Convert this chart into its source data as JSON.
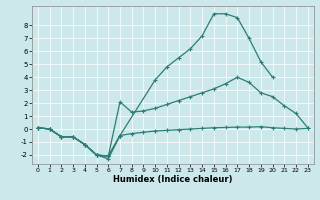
{
  "xlabel": "Humidex (Indice chaleur)",
  "background_color": "#cce8ea",
  "line_color": "#2d7d74",
  "grid_color": "#ffffff",
  "xlim": [
    -0.5,
    23.5
  ],
  "ylim": [
    -2.7,
    9.5
  ],
  "xticks": [
    0,
    1,
    2,
    3,
    4,
    5,
    6,
    7,
    8,
    9,
    10,
    11,
    12,
    13,
    14,
    15,
    16,
    17,
    18,
    19,
    20,
    21,
    22,
    23
  ],
  "yticks": [
    -2,
    -1,
    0,
    1,
    2,
    3,
    4,
    5,
    6,
    7,
    8
  ],
  "line1_x": [
    0,
    1,
    2,
    3,
    4,
    5,
    6,
    7
  ],
  "line1_y": [
    0.1,
    0.0,
    -0.6,
    -0.6,
    -1.2,
    -2.0,
    -2.1,
    -0.5
  ],
  "line2_x": [
    0,
    1,
    2,
    3,
    4,
    5,
    6,
    7,
    8,
    9,
    10,
    11,
    12,
    13,
    14,
    15,
    16,
    17,
    18,
    19,
    20,
    21,
    22,
    23
  ],
  "line2_y": [
    0.1,
    0.0,
    -0.6,
    -0.6,
    -1.2,
    -2.0,
    -2.1,
    -0.5,
    -0.35,
    -0.25,
    -0.15,
    -0.1,
    -0.05,
    0.0,
    0.05,
    0.1,
    0.12,
    0.15,
    0.15,
    0.18,
    0.1,
    0.05,
    0.0,
    0.05
  ],
  "line3_x": [
    0,
    1,
    2,
    3,
    4,
    5,
    6,
    7,
    8,
    9,
    10,
    11,
    12,
    13,
    14,
    15,
    16,
    17,
    18,
    19,
    20,
    21,
    22,
    23
  ],
  "line3_y": [
    0.1,
    0.0,
    -0.6,
    -0.6,
    -1.2,
    -2.0,
    -2.1,
    2.1,
    1.3,
    1.4,
    1.6,
    1.9,
    2.2,
    2.5,
    2.8,
    3.1,
    3.5,
    4.0,
    3.6,
    2.8,
    2.5,
    1.8,
    1.2,
    0.1
  ],
  "line4_x": [
    0,
    1,
    2,
    3,
    4,
    5,
    6,
    7,
    10,
    11,
    12,
    13,
    14,
    15,
    16,
    17,
    18,
    19,
    20
  ],
  "line4_y": [
    0.1,
    0.0,
    -0.6,
    -0.6,
    -1.2,
    -2.0,
    -2.3,
    -0.5,
    3.8,
    4.8,
    5.5,
    6.2,
    7.2,
    8.9,
    8.9,
    8.6,
    7.0,
    5.2,
    4.0
  ]
}
